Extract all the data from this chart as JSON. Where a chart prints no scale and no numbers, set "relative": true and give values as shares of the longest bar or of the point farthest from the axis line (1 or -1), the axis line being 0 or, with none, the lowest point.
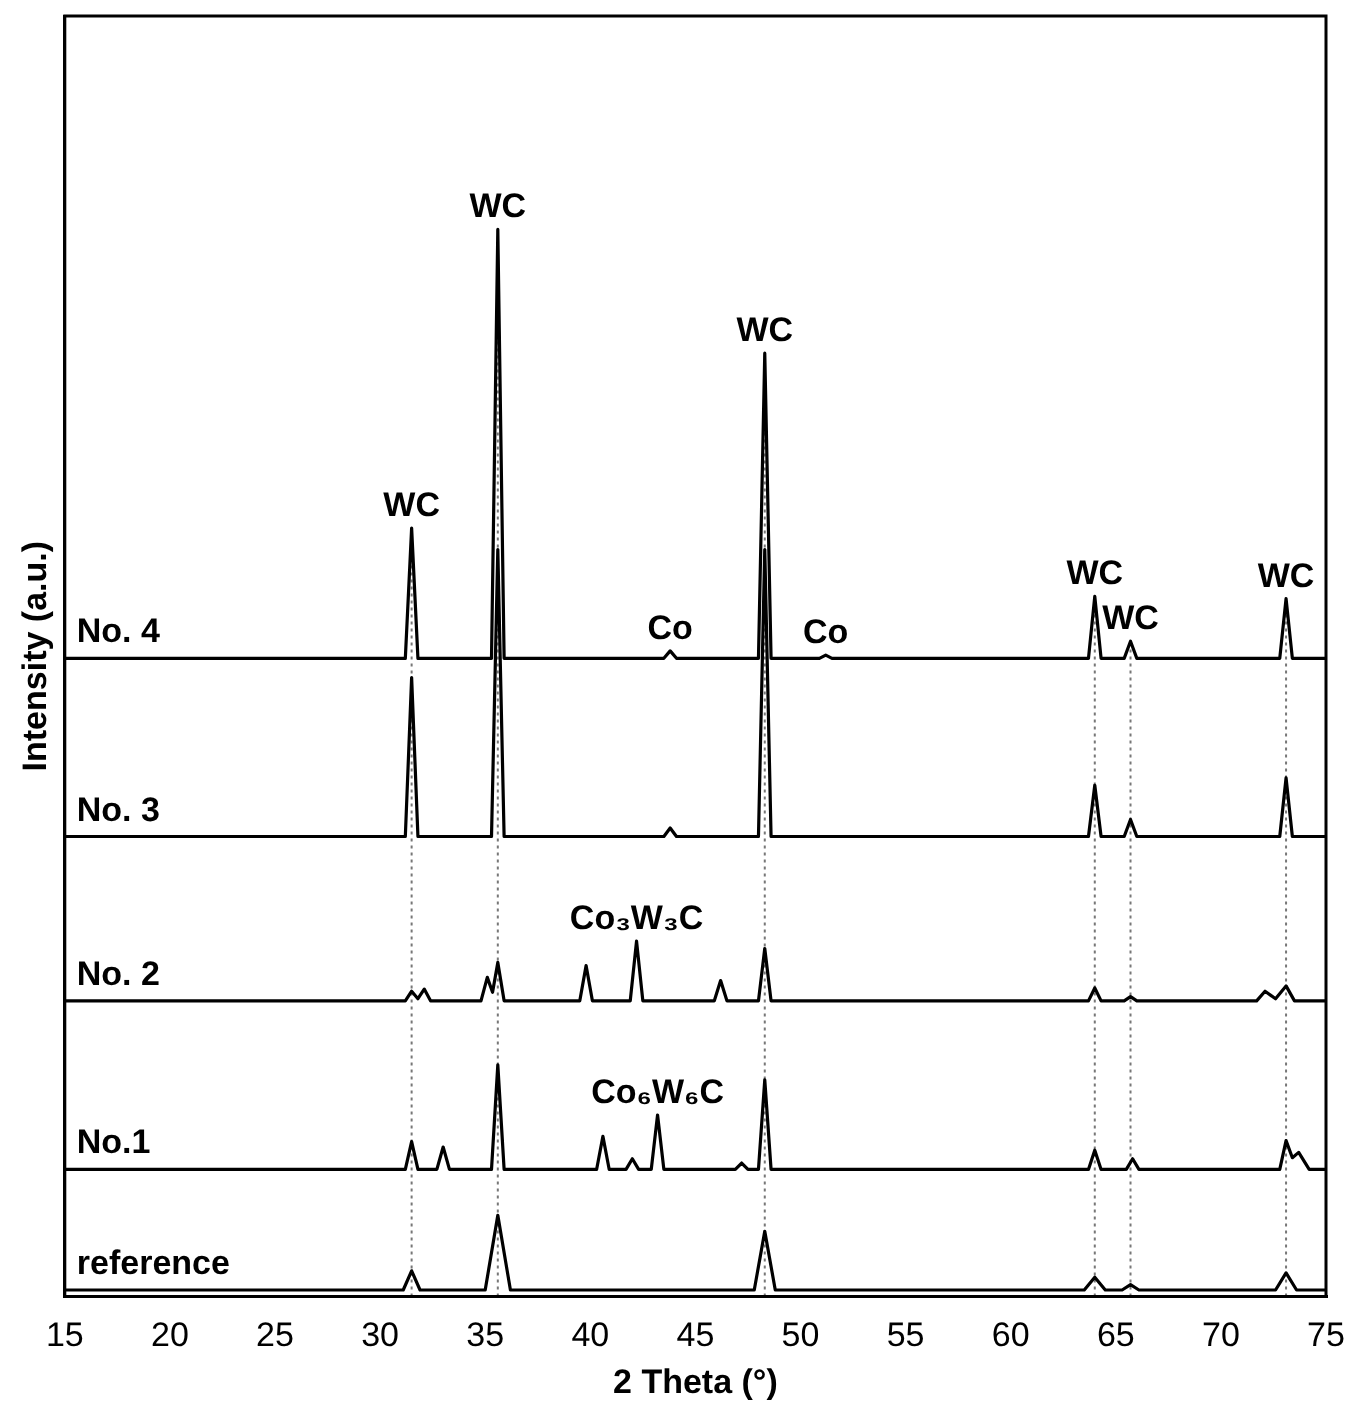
{
  "chart_data": {
    "type": "line",
    "relative": true,
    "xlabel": "2 Theta (°)",
    "ylabel": "Intensity (a.u.)",
    "xlim": [
      15,
      75
    ],
    "xticks": [
      15,
      20,
      25,
      30,
      35,
      40,
      45,
      50,
      55,
      60,
      65,
      70,
      75
    ],
    "grid": false,
    "legend": false,
    "marker": "none",
    "line_style": "solid",
    "series": [
      {
        "name": "No. 4",
        "color": "#000000",
        "x": [
          15,
          31.2,
          31.5,
          31.8,
          35.3,
          35.6,
          35.9,
          43.5,
          43.8,
          44.1,
          48.0,
          48.3,
          48.6,
          50.9,
          51.2,
          51.5,
          63.7,
          64.0,
          64.3,
          65.4,
          65.7,
          66.0,
          72.8,
          73.1,
          73.4,
          75
        ],
        "values": [
          0.598,
          0.598,
          0.72,
          0.598,
          0.598,
          1.0,
          0.598,
          0.598,
          0.605,
          0.598,
          0.598,
          0.884,
          0.598,
          0.598,
          0.601,
          0.598,
          0.598,
          0.656,
          0.598,
          0.598,
          0.614,
          0.598,
          0.598,
          0.654,
          0.598,
          0.598
        ]
      },
      {
        "name": "No. 3",
        "color": "#000000",
        "x": [
          15,
          31.2,
          31.5,
          31.8,
          35.3,
          35.6,
          35.9,
          43.5,
          43.8,
          44.1,
          48.0,
          48.3,
          48.6,
          63.7,
          64.0,
          64.3,
          65.4,
          65.7,
          66.0,
          72.8,
          73.1,
          73.4,
          75
        ],
        "values": [
          0.431,
          0.431,
          0.58,
          0.431,
          0.431,
          0.7,
          0.431,
          0.431,
          0.439,
          0.431,
          0.431,
          0.7,
          0.431,
          0.431,
          0.479,
          0.431,
          0.431,
          0.447,
          0.431,
          0.431,
          0.486,
          0.431,
          0.431
        ]
      },
      {
        "name": "No. 2",
        "color": "#000000",
        "x": [
          15,
          31.2,
          31.5,
          31.8,
          32.1,
          32.4,
          34.8,
          35.1,
          35.35,
          35.6,
          35.9,
          39.5,
          39.8,
          40.1,
          41.9,
          42.2,
          42.5,
          45.9,
          46.2,
          46.5,
          48.0,
          48.3,
          48.6,
          63.7,
          64.0,
          64.3,
          65.4,
          65.7,
          66.0,
          71.7,
          72.1,
          72.6,
          73.1,
          73.5,
          75
        ],
        "values": [
          0.277,
          0.277,
          0.286,
          0.279,
          0.288,
          0.277,
          0.277,
          0.299,
          0.285,
          0.313,
          0.277,
          0.277,
          0.31,
          0.277,
          0.277,
          0.333,
          0.277,
          0.277,
          0.296,
          0.277,
          0.277,
          0.326,
          0.277,
          0.277,
          0.289,
          0.277,
          0.277,
          0.281,
          0.277,
          0.277,
          0.286,
          0.279,
          0.291,
          0.277,
          0.277
        ]
      },
      {
        "name": "No.1",
        "color": "#000000",
        "x": [
          15,
          31.2,
          31.5,
          31.8,
          32.7,
          33.0,
          33.3,
          35.3,
          35.6,
          35.9,
          40.3,
          40.6,
          40.9,
          41.7,
          42.0,
          42.3,
          42.9,
          43.2,
          43.5,
          46.9,
          47.2,
          47.5,
          48.0,
          48.3,
          48.6,
          63.7,
          64.0,
          64.3,
          65.5,
          65.8,
          66.1,
          72.8,
          73.1,
          73.4,
          73.7,
          74.2,
          75
        ],
        "values": [
          0.119,
          0.119,
          0.145,
          0.119,
          0.119,
          0.14,
          0.119,
          0.119,
          0.217,
          0.119,
          0.119,
          0.15,
          0.119,
          0.119,
          0.129,
          0.119,
          0.119,
          0.17,
          0.119,
          0.119,
          0.125,
          0.119,
          0.119,
          0.203,
          0.119,
          0.119,
          0.137,
          0.119,
          0.119,
          0.129,
          0.119,
          0.119,
          0.146,
          0.13,
          0.135,
          0.119,
          0.119
        ]
      },
      {
        "name": "reference",
        "color": "#000000",
        "x": [
          15,
          31.1,
          31.5,
          31.9,
          35.0,
          35.6,
          36.2,
          47.8,
          48.3,
          48.8,
          63.5,
          64.0,
          64.5,
          65.3,
          65.7,
          66.1,
          72.6,
          73.1,
          73.6,
          75
        ],
        "values": [
          0.006,
          0.006,
          0.024,
          0.006,
          0.006,
          0.076,
          0.006,
          0.006,
          0.061,
          0.006,
          0.006,
          0.018,
          0.006,
          0.006,
          0.011,
          0.006,
          0.006,
          0.022,
          0.006,
          0.006
        ]
      }
    ],
    "ref_lines": [
      {
        "axis": "x",
        "value": 31.5,
        "label": null,
        "color": "#777777",
        "line_style": "dotted"
      },
      {
        "axis": "x",
        "value": 35.6,
        "label": null,
        "color": "#777777",
        "line_style": "dotted"
      },
      {
        "axis": "x",
        "value": 48.3,
        "label": null,
        "color": "#777777",
        "line_style": "dotted"
      },
      {
        "axis": "x",
        "value": 64.0,
        "label": null,
        "color": "#777777",
        "line_style": "dotted"
      },
      {
        "axis": "x",
        "value": 65.7,
        "label": null,
        "color": "#777777",
        "line_style": "dotted"
      },
      {
        "axis": "x",
        "value": 73.1,
        "label": null,
        "color": "#777777",
        "line_style": "dotted"
      }
    ],
    "annotations": [
      {
        "text": "WC",
        "x": 31.5,
        "y": 0.72
      },
      {
        "text": "WC",
        "x": 35.6,
        "y": 1.0
      },
      {
        "text": "WC",
        "x": 48.3,
        "y": 0.884
      },
      {
        "text": "WC",
        "x": 64.0,
        "y": 0.656
      },
      {
        "text": "WC",
        "x": 65.7,
        "y": 0.614
      },
      {
        "text": "WC",
        "x": 73.1,
        "y": 0.654
      },
      {
        "text": "Co",
        "x": 43.8,
        "y": 0.605
      },
      {
        "text": "Co",
        "x": 51.2,
        "y": 0.601
      },
      {
        "text": "Co₃W₃C",
        "x": 42.2,
        "y": 0.333
      },
      {
        "text": "Co₆W₆C",
        "x": 43.2,
        "y": 0.17
      }
    ]
  }
}
